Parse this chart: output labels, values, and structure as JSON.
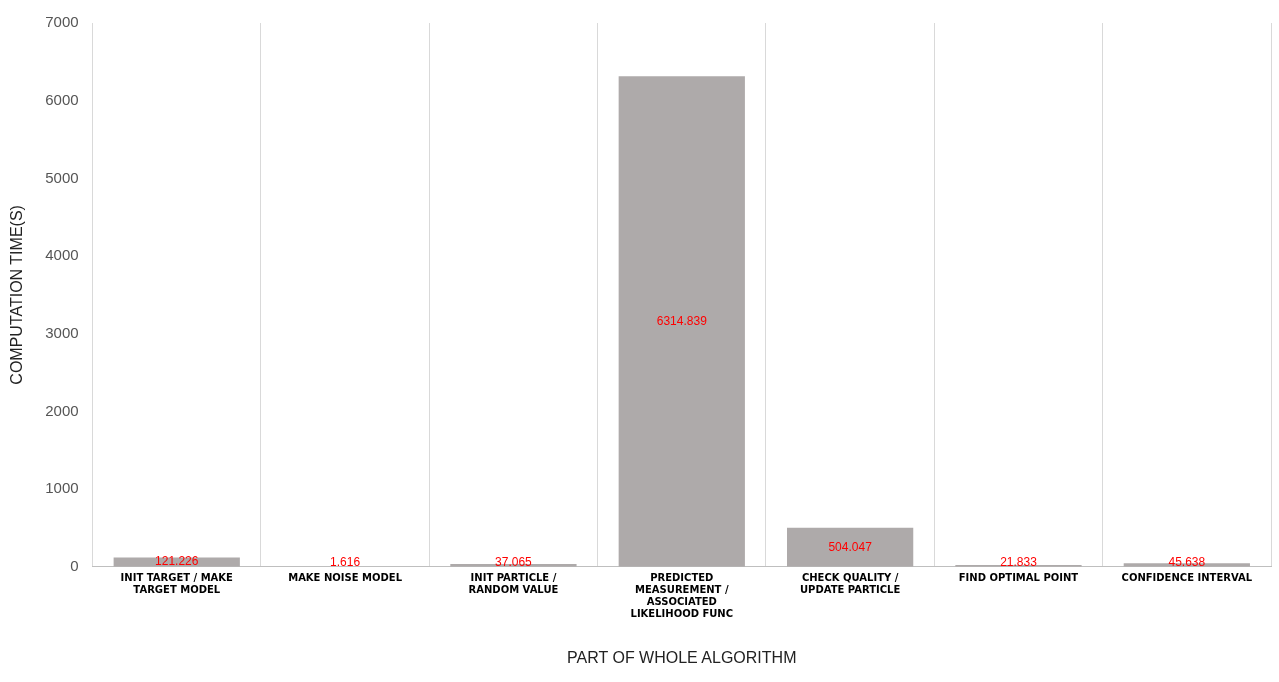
{
  "chart_data": {
    "type": "bar",
    "xlabel": "PART OF WHOLE ALGORITHM",
    "ylabel": "COMPUTATION TIME(S)",
    "categories": [
      "INIT TARGET / MAKE TARGET MODEL",
      "MAKE NOISE MODEL",
      "INIT PARTICLE / RANDOM VALUE",
      "PREDICTED MEASUREMENT / ASSOCIATED LIKELIHOOD FUNC",
      "CHECK QUALITY / UPDATE PARTICLE",
      "FIND OPTIMAL POINT",
      "CONFIDENCE INTERVAL"
    ],
    "values": [
      121.226,
      1.616,
      37.065,
      6314.839,
      504.047,
      21.833,
      45.638
    ],
    "color": "#aeaaaa",
    "ylim": [
      0,
      7000
    ],
    "yticks": [
      0,
      1000,
      2000,
      3000,
      4000,
      5000,
      6000,
      7000
    ],
    "grid": "x",
    "data_labels": true
  }
}
